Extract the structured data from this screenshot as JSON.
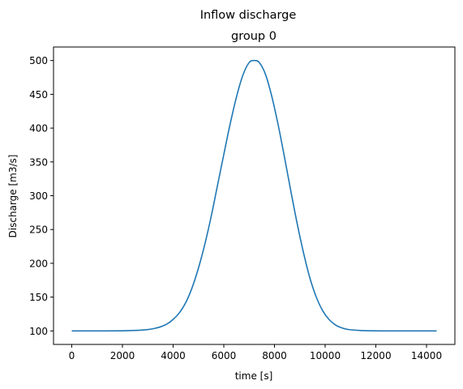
{
  "chart_data": {
    "type": "line",
    "suptitle": "Inflow discharge",
    "title": "group 0",
    "xlabel": "time [s]",
    "ylabel": "Discharge [m3/s]",
    "xlim": [
      -720,
      15120
    ],
    "ylim": [
      80,
      520
    ],
    "grid": false,
    "x_ticks": [
      0,
      2000,
      4000,
      6000,
      8000,
      10000,
      12000,
      14000
    ],
    "y_ticks": [
      100,
      150,
      200,
      250,
      300,
      350,
      400,
      450,
      500
    ],
    "x_tick_labels": [
      "0",
      "2000",
      "4000",
      "6000",
      "8000",
      "10000",
      "12000",
      "14000"
    ],
    "y_tick_labels": [
      "100",
      "150",
      "200",
      "250",
      "300",
      "350",
      "400",
      "450",
      "500"
    ],
    "series": [
      {
        "color": "#1f77b4",
        "x": [
          0,
          1000,
          2000,
          2500,
          3000,
          3250,
          3500,
          3750,
          4000,
          4250,
          4500,
          4750,
          5000,
          5250,
          5500,
          5750,
          6000,
          6250,
          6500,
          6750,
          7000,
          7200,
          7400,
          7650,
          7900,
          8150,
          8400,
          8650,
          8900,
          9150,
          9400,
          9650,
          9900,
          10150,
          10400,
          10650,
          10900,
          11400,
          11900,
          12400,
          13000,
          14400
        ],
        "y": [
          100,
          100,
          100.2,
          100.7,
          102,
          103.5,
          106,
          110,
          117,
          127,
          142,
          164,
          193,
          228,
          269,
          315,
          361,
          406,
          446,
          478,
          497,
          500,
          497,
          479,
          446,
          404,
          356,
          306,
          258,
          215,
          178,
          150,
          130,
          117,
          109,
          104.5,
          102.2,
          100.6,
          100.15,
          100.04,
          100,
          100
        ]
      }
    ]
  }
}
